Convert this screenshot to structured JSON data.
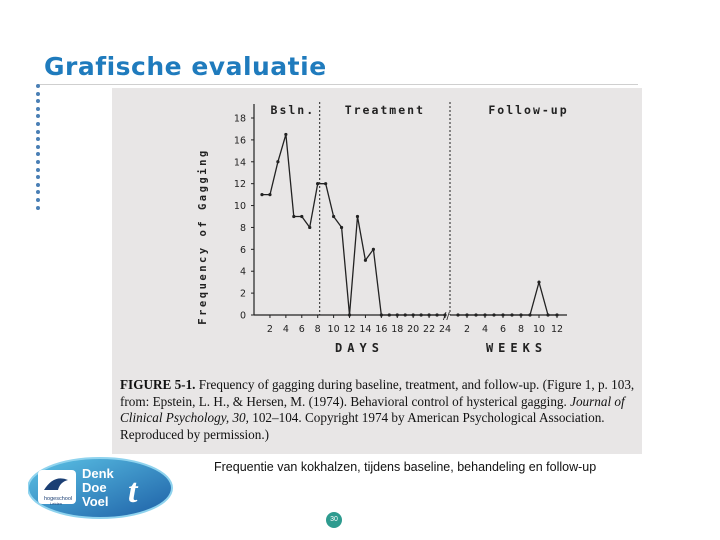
{
  "slide": {
    "title": "Grafische evaluatie",
    "subcaption": "Frequentie van kokhalzen, tijdens baseline, behandeling en follow-up",
    "page_number": "30"
  },
  "logo": {
    "line1": "Denk",
    "line2": "Doe",
    "line3": "Voel",
    "letter": "t",
    "school": "hogeschool",
    "city": "Leiden"
  },
  "caption": {
    "fig_label": "FIGURE 5-1.",
    "text1": "Frequency of gagging during baseline, treatment, and follow-up. (Figure 1, p. 103, from: Epstein, L. H., & Hersen, M. (1974). Behavioral control of hysterical gagging.",
    "journal": "Journal of Clinical Psychology,",
    "volume": "30,",
    "text2": "102–104. Copyright 1974 by American Psychological Association. Reproduced by permission.)"
  },
  "chart_data": {
    "type": "line",
    "ylabel": "Frequency of Gagging",
    "ylim": [
      0,
      18
    ],
    "yticks": [
      0,
      2,
      4,
      6,
      8,
      10,
      12,
      14,
      16,
      18
    ],
    "phases": [
      "Bsln.",
      "Treatment",
      "Follow-up"
    ],
    "xlabel_days": "DAYS",
    "xlabel_weeks": "WEEKS",
    "days_ticks": [
      "2",
      "4",
      "6",
      "8",
      "10",
      "12",
      "14",
      "16",
      "18",
      "20",
      "22",
      "24"
    ],
    "weeks_ticks": [
      "2",
      "4",
      "6",
      "8",
      "10",
      "12"
    ],
    "series": [
      {
        "segment": "baseline",
        "x": [
          1,
          2,
          3,
          4,
          5,
          6,
          7,
          8
        ],
        "y": [
          11,
          11,
          14,
          16.5,
          9,
          9,
          8,
          12
        ]
      },
      {
        "segment": "treatment",
        "x": [
          8,
          9,
          10,
          11,
          12,
          13,
          14,
          15,
          16,
          17,
          18,
          19,
          20,
          21,
          22,
          23,
          24
        ],
        "y": [
          12,
          12,
          9,
          8,
          0,
          9,
          5,
          6,
          0,
          0,
          0,
          0,
          0,
          0,
          0,
          0,
          0
        ]
      },
      {
        "segment": "follow-up",
        "x": [
          1,
          2,
          3,
          4,
          5,
          6,
          7,
          8,
          9,
          10,
          11,
          12
        ],
        "y": [
          0,
          0,
          0,
          0,
          0,
          0,
          0,
          0,
          0,
          3,
          0,
          0
        ]
      }
    ]
  }
}
